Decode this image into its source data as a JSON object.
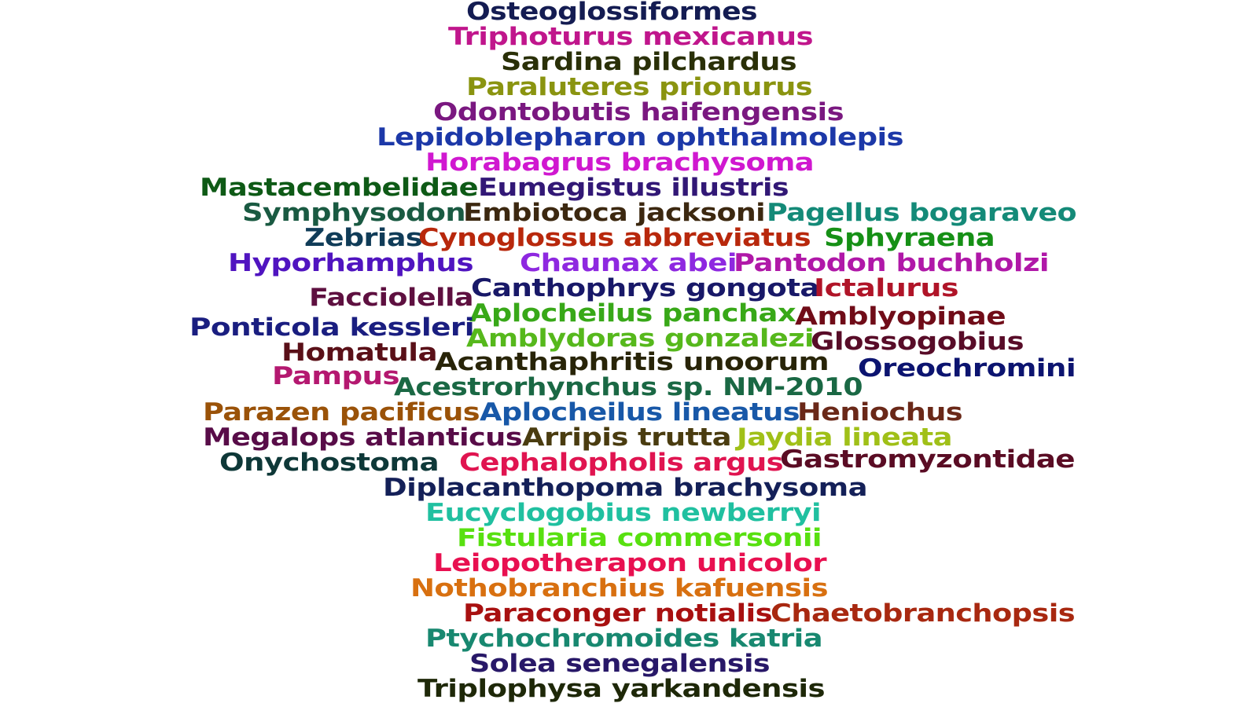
{
  "words": [
    {
      "text": "Osteoglossiformes",
      "color": "#141c52"
    },
    {
      "text": "Triphoturus mexicanus",
      "color": "#c0168c"
    },
    {
      "text": "Sardina pilchardus",
      "color": "#2a3008"
    },
    {
      "text": "Paraluteres prionurus",
      "color": "#8a9410"
    },
    {
      "text": "Odontobutis haifengensis",
      "color": "#7a1880"
    },
    {
      "text": "Lepidoblepharon ophthalmolepis",
      "color": "#1c38a8"
    },
    {
      "text": "Horabagrus brachysoma",
      "color": "#d018d0"
    },
    {
      "text": "Mastacembelidae",
      "color": "#0e5a16"
    },
    {
      "text": "Eumegistus illustris",
      "color": "#321876"
    },
    {
      "text": "Symphysodon",
      "color": "#1a5a42"
    },
    {
      "text": "Embiotoca jacksoni",
      "color": "#3c2810"
    },
    {
      "text": "Pagellus bogaraveo",
      "color": "#148a78"
    },
    {
      "text": "Zebrias",
      "color": "#103c58"
    },
    {
      "text": "Cynoglossus abbreviatus",
      "color": "#b8280c"
    },
    {
      "text": "Sphyraena",
      "color": "#169016"
    },
    {
      "text": "Hyporhamphus",
      "color": "#5014c0"
    },
    {
      "text": "Chaunax abei",
      "color": "#8e28e0"
    },
    {
      "text": "Pantodon buchholzi",
      "color": "#b018a8"
    },
    {
      "text": "Canthophrys gongota",
      "color": "#181868"
    },
    {
      "text": "Ictalurus",
      "color": "#b01428"
    },
    {
      "text": "Facciolella",
      "color": "#5e1040"
    },
    {
      "text": "Aplocheilus panchax",
      "color": "#38a818"
    },
    {
      "text": "Amblyopinae",
      "color": "#700c18"
    },
    {
      "text": "Ponticola kessleri",
      "color": "#1a1e80"
    },
    {
      "text": "Amblydoras gonzalezi",
      "color": "#56b81c"
    },
    {
      "text": "Glossogobius",
      "color": "#580c28"
    },
    {
      "text": "Homatula",
      "color": "#5a1018"
    },
    {
      "text": "Acanthaphritis unoorum",
      "color": "#282408"
    },
    {
      "text": "Oreochromini",
      "color": "#0c1470"
    },
    {
      "text": "Pampus",
      "color": "#b41870"
    },
    {
      "text": "Acestrorhynchus sp. NM-2010",
      "color": "#1a6844"
    },
    {
      "text": "Parazen pacificus",
      "color": "#9a5208"
    },
    {
      "text": "Aplocheilus lineatus",
      "color": "#1858a8"
    },
    {
      "text": "Heniochus",
      "color": "#6a2818"
    },
    {
      "text": "Megalops atlanticus",
      "color": "#580c48"
    },
    {
      "text": "Arripis trutta",
      "color": "#4a3c10"
    },
    {
      "text": "Jaydia lineata",
      "color": "#a0c018"
    },
    {
      "text": "Onychostoma",
      "color": "#0e3838"
    },
    {
      "text": "Cephalopholis argus",
      "color": "#e01450"
    },
    {
      "text": "Gastromyzontidae",
      "color": "#5a0c24"
    },
    {
      "text": "Diplacanthopoma brachysoma",
      "color": "#142058"
    },
    {
      "text": "Eucyclogobius newberryi",
      "color": "#20c0a0"
    },
    {
      "text": "Fistularia commersonii",
      "color": "#58e010"
    },
    {
      "text": "Leiopotherapon unicolor",
      "color": "#e81050"
    },
    {
      "text": "Nothobranchius kafuensis",
      "color": "#d87010"
    },
    {
      "text": "Paraconger notialis",
      "color": "#a81010"
    },
    {
      "text": "Chaetobranchopsis",
      "color": "#a82810"
    },
    {
      "text": "Ptychochromoides katria",
      "color": "#188870"
    },
    {
      "text": "Solea senegalensis",
      "color": "#281868"
    },
    {
      "text": "Triplophysa yarkandensis",
      "color": "#1e2808"
    }
  ]
}
